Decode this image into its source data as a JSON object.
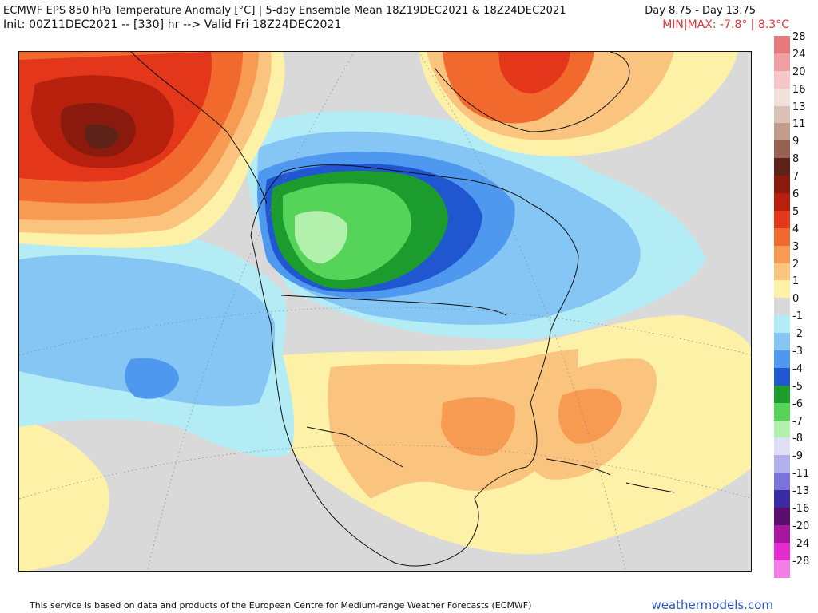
{
  "header": {
    "title_line1": "ECMWF EPS 850 hPa Temperature Anomaly [°C] | 5-day Ensemble Mean 18Z19DEC2021 & 18Z24DEC2021",
    "title_line1_right": "Day 8.75 - Day 13.75",
    "title_line2": "Init: 00Z11DEC2021 -- [330] hr --> Valid Fri 18Z24DEC2021",
    "minmax": "MIN|MAX: -7.8° | 8.3°C"
  },
  "legend": {
    "items": [
      {
        "label": "28",
        "color": "#e8797d"
      },
      {
        "label": "24",
        "color": "#f0a0a4"
      },
      {
        "label": "20",
        "color": "#f6c6c8"
      },
      {
        "label": "16",
        "color": "#f1e2dc"
      },
      {
        "label": "13",
        "color": "#dcc1b7"
      },
      {
        "label": "11",
        "color": "#c39c8e"
      },
      {
        "label": "9",
        "color": "#96614f"
      },
      {
        "label": "8",
        "color": "#5d2318"
      },
      {
        "label": "7",
        "color": "#8b1a0e"
      },
      {
        "label": "6",
        "color": "#b8200e"
      },
      {
        "label": "5",
        "color": "#e3361b"
      },
      {
        "label": "4",
        "color": "#f2692e"
      },
      {
        "label": "3",
        "color": "#f79a52"
      },
      {
        "label": "2",
        "color": "#fbc47e"
      },
      {
        "label": "1",
        "color": "#fdf1a8"
      },
      {
        "label": "0",
        "color": "#d9d9d9"
      },
      {
        "label": "-1",
        "color": "#b4ecf6"
      },
      {
        "label": "-2",
        "color": "#86c6f5"
      },
      {
        "label": "-3",
        "color": "#4f98ef"
      },
      {
        "label": "-4",
        "color": "#2156d1"
      },
      {
        "label": "-5",
        "color": "#1c9c2c"
      },
      {
        "label": "-6",
        "color": "#56d45a"
      },
      {
        "label": "-7",
        "color": "#b3f0ae"
      },
      {
        "label": "-8",
        "color": "#dedef7"
      },
      {
        "label": "-9",
        "color": "#b3b0ee"
      },
      {
        "label": "-11",
        "color": "#7a74da"
      },
      {
        "label": "-13",
        "color": "#3a2aa4"
      },
      {
        "label": "-16",
        "color": "#5b0e6e"
      },
      {
        "label": "-20",
        "color": "#a8169f"
      },
      {
        "label": "-24",
        "color": "#e52bd0"
      },
      {
        "label": "-28",
        "color": "#f57ee6"
      }
    ]
  },
  "footer": {
    "disclaimer": "This service is based on data and products of the European Centre for Medium-range Weather Forecasts (ECMWF)",
    "site": "weathermodels.com"
  }
}
